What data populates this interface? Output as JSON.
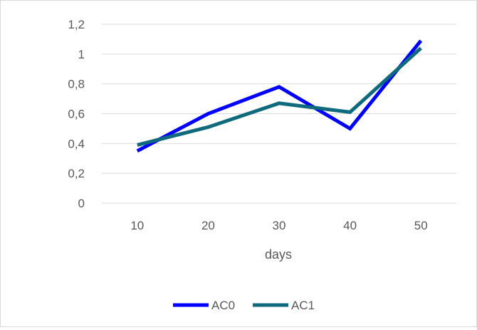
{
  "chart_data": {
    "type": "line",
    "title": "",
    "xlabel": "days",
    "ylabel": "",
    "categories": [
      "10",
      "20",
      "30",
      "40",
      "50"
    ],
    "y_ticks": [
      "0",
      "0,2",
      "0,4",
      "0,6",
      "0,8",
      "1",
      "1,2"
    ],
    "ylim": [
      0,
      1.2
    ],
    "grid": true,
    "legend_position": "bottom",
    "series": [
      {
        "name": "AC0",
        "color": "#0000ff",
        "values": [
          0.35,
          0.6,
          0.78,
          0.5,
          1.09
        ]
      },
      {
        "name": "AC1",
        "color": "#0f6a7e",
        "values": [
          0.39,
          0.51,
          0.67,
          0.61,
          1.04
        ]
      }
    ]
  }
}
